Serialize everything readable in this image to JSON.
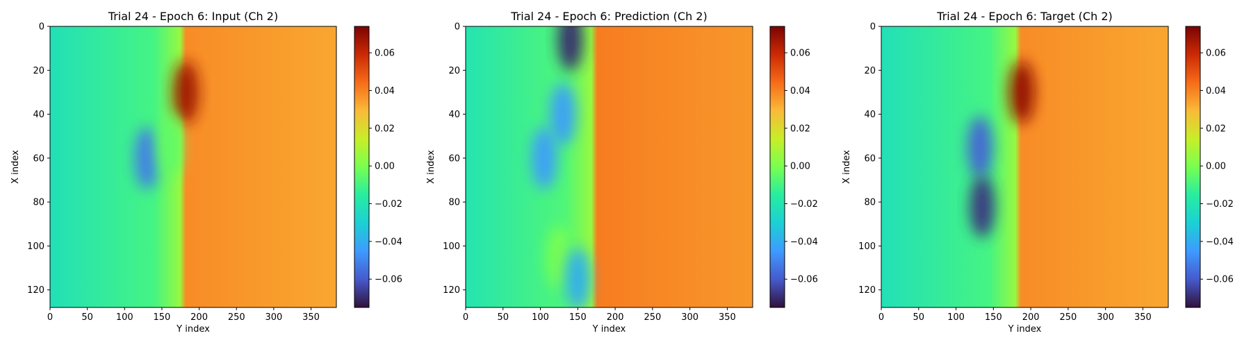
{
  "chart_data": [
    {
      "type": "heatmap",
      "title": "Trial 24 - Epoch 6: Input (Ch 2)",
      "xlabel": "Y index",
      "ylabel": "X index",
      "xlim": [
        0,
        384
      ],
      "ylim": [
        128,
        0
      ],
      "xticks": [
        0,
        50,
        100,
        150,
        200,
        250,
        300,
        350
      ],
      "yticks": [
        0,
        20,
        40,
        60,
        80,
        100,
        120
      ],
      "colorbar": {
        "range": [
          -0.075,
          0.074
        ],
        "ticks": [
          "0.06",
          "0.04",
          "0.02",
          "0.00",
          "−0.02",
          "−0.04",
          "−0.06"
        ],
        "colormap": "turbo"
      },
      "field": {
        "background_left": -0.022,
        "background_right": 0.033,
        "front_x": 178,
        "blobs": [
          {
            "x": 130,
            "y": 60,
            "value": -0.052
          },
          {
            "x": 182,
            "y": 30,
            "value": 0.068
          },
          {
            "x": 160,
            "y": 55,
            "value": -0.005
          }
        ]
      }
    },
    {
      "type": "heatmap",
      "title": "Trial 24 - Epoch 6: Prediction (Ch 2)",
      "xlabel": "Y index",
      "ylabel": "X index",
      "xlim": [
        0,
        384
      ],
      "ylim": [
        128,
        0
      ],
      "xticks": [
        0,
        50,
        100,
        150,
        200,
        250,
        300,
        350
      ],
      "yticks": [
        0,
        20,
        40,
        60,
        80,
        100,
        120
      ],
      "colorbar": {
        "range": [
          -0.075,
          0.074
        ],
        "ticks": [
          "0.06",
          "0.04",
          "0.02",
          "0.00",
          "−0.02",
          "−0.04",
          "−0.06"
        ],
        "colormap": "turbo"
      },
      "field": {
        "background_left": -0.02,
        "background_right": 0.036,
        "front_x": 172,
        "blobs": [
          {
            "x": 140,
            "y": 6,
            "value": -0.07
          },
          {
            "x": 130,
            "y": 40,
            "value": -0.045
          },
          {
            "x": 105,
            "y": 60,
            "value": -0.045
          },
          {
            "x": 125,
            "y": 105,
            "value": 0.0
          },
          {
            "x": 150,
            "y": 115,
            "value": -0.04
          }
        ]
      }
    },
    {
      "type": "heatmap",
      "title": "Trial 24 - Epoch 6: Target (Ch 2)",
      "xlabel": "Y index",
      "ylabel": "X index",
      "xlim": [
        0,
        384
      ],
      "ylim": [
        128,
        0
      ],
      "xticks": [
        0,
        50,
        100,
        150,
        200,
        250,
        300,
        350
      ],
      "yticks": [
        0,
        20,
        40,
        60,
        80,
        100,
        120
      ],
      "colorbar": {
        "range": [
          -0.075,
          0.074
        ],
        "ticks": [
          "0.06",
          "0.04",
          "0.02",
          "0.00",
          "−0.02",
          "−0.04",
          "−0.06"
        ],
        "colormap": "turbo"
      },
      "field": {
        "background_left": -0.022,
        "background_right": 0.033,
        "front_x": 183,
        "blobs": [
          {
            "x": 132,
            "y": 55,
            "value": -0.058
          },
          {
            "x": 135,
            "y": 82,
            "value": -0.068
          },
          {
            "x": 188,
            "y": 30,
            "value": 0.07
          }
        ]
      }
    }
  ]
}
